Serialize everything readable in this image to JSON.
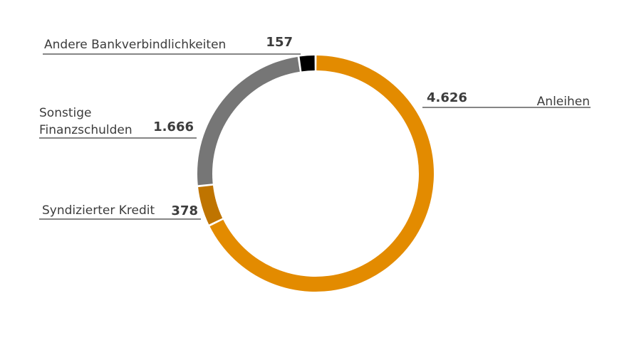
{
  "chart_data": {
    "type": "pie",
    "variant": "donut",
    "title": "",
    "slices": [
      {
        "name": "Anleihen",
        "value": 4626,
        "value_label": "4.626",
        "color": "#e38b00"
      },
      {
        "name": "Syndizierter Kredit",
        "value": 378,
        "value_label": "378",
        "color": "#bf7400"
      },
      {
        "name": "Sonstige Finanzschulden",
        "name_lines": [
          "Sonstige",
          "Finanzschulden"
        ],
        "value": 1666,
        "value_label": "1.666",
        "color": "#767676"
      },
      {
        "name": "Andere Bankverbindlichkeiten",
        "value": 157,
        "value_label": "157",
        "color": "#000000"
      }
    ],
    "legend": "none"
  }
}
